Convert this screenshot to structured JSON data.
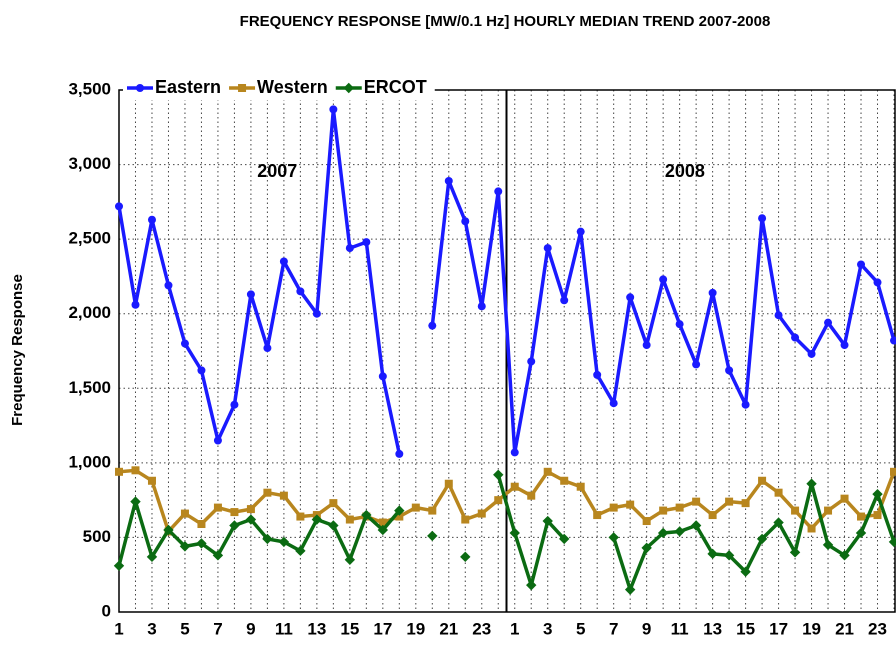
{
  "chart_data": {
    "type": "line",
    "title": "FREQUENCY RESPONSE [MW/0.1 Hz] HOURLY MEDIAN TREND 2007-2008",
    "y_label": "Frequency Response",
    "annotations": [
      "2007",
      "2008"
    ],
    "categories": [
      "1",
      null,
      "3",
      null,
      "5",
      null,
      "7",
      null,
      "9",
      null,
      "11",
      null,
      "13",
      null,
      "15",
      null,
      "17",
      null,
      "19",
      null,
      "21",
      null,
      "23",
      null,
      "1",
      null,
      "3",
      null,
      "5",
      null,
      "7",
      null,
      "9",
      null,
      "11",
      null,
      "13",
      null,
      "15",
      null,
      "17",
      null,
      "19",
      null,
      "21",
      null,
      "23",
      null
    ],
    "series": [
      {
        "name": "Eastern",
        "color": "#1a1aff",
        "marker": "circle",
        "values": [
          2720,
          2060,
          2630,
          2190,
          1800,
          1620,
          1150,
          1390,
          2130,
          1770,
          2350,
          2150,
          2000,
          3370,
          2440,
          2480,
          1580,
          1060,
          null,
          1920,
          2890,
          2620,
          2050,
          2820,
          1070,
          1680,
          2440,
          2090,
          2550,
          1590,
          1400,
          2110,
          1790,
          2230,
          1930,
          1660,
          2140,
          1620,
          1390,
          2640,
          1990,
          1840,
          1730,
          1940,
          1790,
          2330,
          2210,
          1820
        ]
      },
      {
        "name": "Western",
        "color": "#b8861e",
        "marker": "square",
        "values": [
          940,
          950,
          880,
          540,
          660,
          590,
          700,
          670,
          690,
          800,
          780,
          640,
          650,
          730,
          620,
          640,
          600,
          640,
          700,
          680,
          860,
          620,
          660,
          750,
          840,
          780,
          940,
          880,
          840,
          650,
          700,
          720,
          610,
          680,
          700,
          740,
          650,
          740,
          730,
          880,
          800,
          680,
          560,
          680,
          760,
          640,
          650,
          940
        ]
      },
      {
        "name": "ERCOT",
        "color": "#0b6b12",
        "marker": "diamond",
        "values": [
          310,
          740,
          370,
          550,
          440,
          460,
          380,
          580,
          620,
          490,
          470,
          410,
          620,
          580,
          350,
          650,
          550,
          680,
          null,
          510,
          null,
          370,
          null,
          920,
          530,
          180,
          610,
          490,
          null,
          null,
          500,
          150,
          430,
          530,
          540,
          580,
          390,
          380,
          270,
          490,
          600,
          400,
          860,
          450,
          380,
          530,
          790,
          470
        ]
      }
    ],
    "ylim": [
      0,
      3500
    ],
    "yticks": [
      0,
      {
        "value": 500,
        "label": "500"
      },
      {
        "value": 1000,
        "label": "1,000"
      },
      {
        "value": 1500,
        "label": "1,500"
      },
      {
        "value": 2000,
        "label": "2,000"
      },
      {
        "value": 2500,
        "label": "2,500"
      },
      {
        "value": 3000,
        "label": "3,000"
      },
      {
        "value": 3500,
        "label": "3,500"
      }
    ],
    "grid": true,
    "legend": "upper left"
  }
}
